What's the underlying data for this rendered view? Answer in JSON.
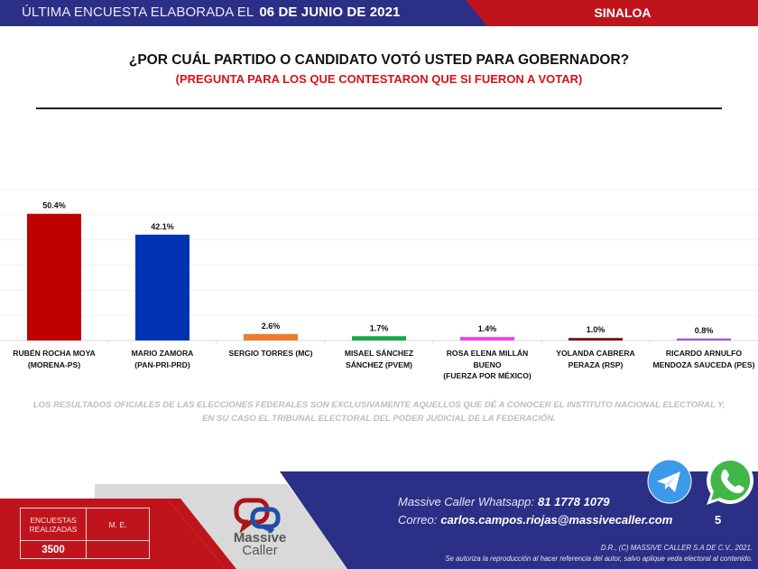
{
  "header": {
    "survey_label": "ÚLTIMA ENCUESTA ELABORADA EL",
    "survey_date": "06 DE JUNIO DE 2021",
    "state": "SINALOA",
    "colors": {
      "blue": "#2b2f86",
      "red": "#c0141d"
    }
  },
  "question": {
    "title": "¿POR CUÁL PARTIDO O CANDIDATO VOTÓ USTED PARA GOBERNADOR?",
    "subtitle": "(PREGUNTA PARA LOS QUE CONTESTARON QUE SI FUERON A VOTAR)"
  },
  "chart_data": {
    "type": "bar",
    "title": "¿POR CUÁL PARTIDO O CANDIDATO VOTÓ USTED PARA GOBERNADOR?",
    "xlabel": "",
    "ylabel": "",
    "ylim": [
      0,
      60
    ],
    "grid": true,
    "categories": [
      [
        "RUBÉN ROCHA MOYA",
        "(MORENA-PS)"
      ],
      [
        "MARIO ZAMORA",
        "(PAN-PRI-PRD)"
      ],
      [
        "SERGIO TORRES (MC)"
      ],
      [
        "MISAEL SÁNCHEZ",
        "SÁNCHEZ (PVEM)"
      ],
      [
        "ROSA ELENA MILLÁN",
        "BUENO",
        "(FUERZA POR MÉXICO)"
      ],
      [
        "YOLANDA CABRERA",
        "PERAZA (RSP)"
      ],
      [
        "RICARDO ARNULFO",
        "MENDOZA SAUCEDA (PES)"
      ]
    ],
    "values": [
      50.4,
      42.1,
      2.6,
      1.7,
      1.4,
      1.0,
      0.8
    ],
    "labels": [
      "50.4%",
      "42.1%",
      "2.6%",
      "1.7%",
      "1.4%",
      "1.0%",
      "0.8%"
    ],
    "colors": [
      "#c00000",
      "#0033b4",
      "#ed7d31",
      "#18a84b",
      "#ee44e8",
      "#7b0c10",
      "#9a55cc"
    ]
  },
  "disclaimer": {
    "line1": "LOS RESULTADOS OFICIALES DE LAS ELECCIONES FEDERALES SON EXCLUSIVAMENTE AQUELLOS QUE DÉ A CONOCER EL INSTITUTO NACIONAL ELECTORAL Y,",
    "line2": "EN SU CASO EL TRIBUNAL ELECTORAL DEL PODER JUDICIAL DE LA FEDERACIÓN."
  },
  "footer": {
    "stats": {
      "surveys_label_1": "ENCUESTAS",
      "surveys_label_2": "REALIZADAS",
      "surveys_value": "3500",
      "me_label": "M. E.",
      "me_value": ""
    },
    "logo": {
      "name_1": "Massive",
      "name_2": "Caller"
    },
    "whatsapp_label": "Massive Caller Whatsapp:",
    "whatsapp_number": "81 1778 1079",
    "email_label": "Correo:",
    "email": "carlos.campos.riojas@massivecaller.com",
    "page_number": "5",
    "copyright": "D.R., (C) MASSIVE CALLER S.A DE C.V., 2021.",
    "notice": "Se autoriza la reproducción al hacer referencia del autor, salvo aplique veda electoral al contenido.",
    "icons": [
      "telegram-icon",
      "whatsapp-icon"
    ]
  }
}
